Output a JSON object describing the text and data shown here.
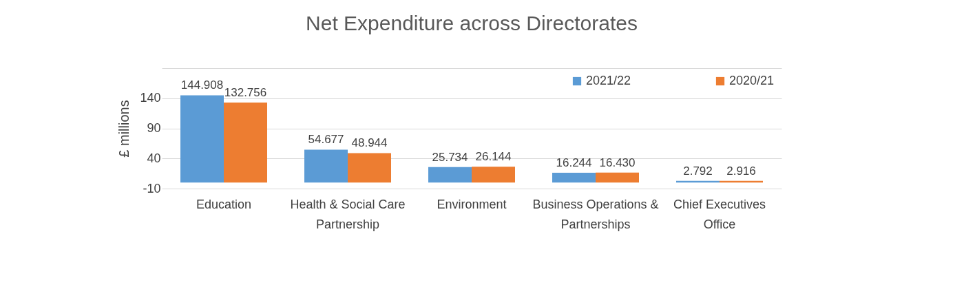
{
  "chart_data": {
    "type": "bar",
    "title": "Net Expenditure across Directorates",
    "ylabel": "£ millions",
    "categories": [
      "Education",
      "Health & Social Care Partnership",
      "Environment",
      "Business Operations & Partnerships",
      "Chief Executives Office"
    ],
    "series": [
      {
        "name": "2021/22",
        "color": "#5b9bd5",
        "values": [
          144.908,
          54.677,
          25.734,
          16.244,
          2.792
        ],
        "value_labels": [
          "144.908",
          "54.677",
          "25.734",
          "16.244",
          "2.792"
        ]
      },
      {
        "name": "2020/21",
        "color": "#ed7d31",
        "values": [
          132.756,
          48.944,
          26.144,
          16.43,
          2.916
        ],
        "value_labels": [
          "132.756",
          "48.944",
          "26.144",
          "16.430",
          "2.916"
        ]
      }
    ],
    "ylim": [
      -10,
      190
    ],
    "yticks": [
      -10,
      40,
      90,
      140,
      {
        "value": 190,
        "label": null
      }
    ],
    "grid": "y",
    "legend": "top right"
  }
}
